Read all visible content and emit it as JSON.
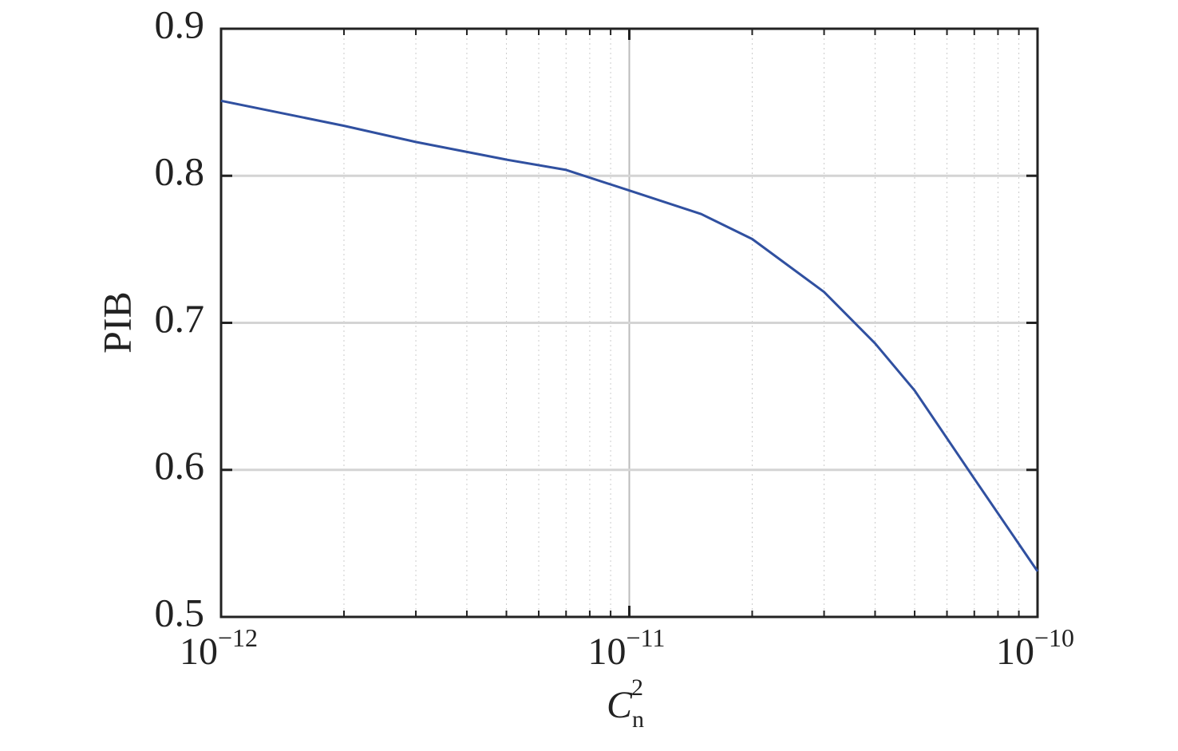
{
  "chart_data": {
    "type": "line",
    "ylabel": "PIB",
    "xlabel": {
      "symbol": "C",
      "subscript": "n",
      "superscript": "2"
    },
    "x": [
      1e-12,
      2e-12,
      3e-12,
      5e-12,
      7e-12,
      1e-11,
      1.5e-11,
      2e-11,
      3e-11,
      4e-11,
      5e-11,
      7e-11,
      1e-10
    ],
    "values": [
      0.851,
      0.834,
      0.823,
      0.811,
      0.804,
      0.79,
      0.774,
      0.757,
      0.721,
      0.686,
      0.654,
      0.594,
      0.531
    ],
    "color": "#3050a0",
    "xscale": "log",
    "xlim": [
      1e-12,
      1e-10
    ],
    "ylim": [
      0.5,
      0.9
    ],
    "xticks": [
      {
        "value": 1e-12,
        "label": {
          "base": "10",
          "exponent": "−12"
        }
      },
      {
        "value": 1e-11,
        "label": {
          "base": "10",
          "exponent": "−11"
        }
      },
      {
        "value": 1e-10,
        "label": {
          "base": "10",
          "exponent": "−10"
        }
      }
    ],
    "xminorticks": [
      2e-12,
      3e-12,
      4e-12,
      5e-12,
      6e-12,
      7e-12,
      8e-12,
      9e-12,
      2e-11,
      3e-11,
      4e-11,
      5e-11,
      6e-11,
      7e-11,
      8e-11,
      9e-11
    ],
    "yticks": [
      0.5,
      0.6,
      0.7,
      0.8,
      0.9
    ],
    "grid": true
  }
}
